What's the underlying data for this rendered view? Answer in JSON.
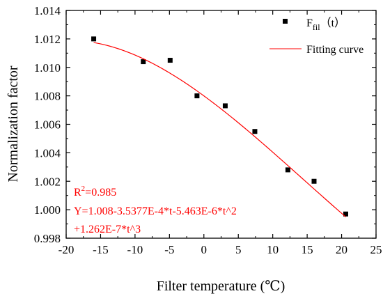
{
  "chart_data": {
    "type": "scatter",
    "xlabel": "Filter temperature (℃)",
    "ylabel": "Normalization factor",
    "xlim": [
      -20,
      25
    ],
    "ylim": [
      0.998,
      1.014
    ],
    "x_ticks": [
      -20,
      -15,
      -10,
      -5,
      0,
      5,
      10,
      15,
      20,
      25
    ],
    "x_tick_labels": [
      "-20",
      "-15",
      "-10",
      "-5",
      "0",
      "5",
      "10",
      "15",
      "20",
      "25"
    ],
    "y_ticks": [
      0.998,
      1.0,
      1.002,
      1.004,
      1.006,
      1.008,
      1.01,
      1.012,
      1.014
    ],
    "y_tick_labels": [
      "0.998",
      "1.000",
      "1.002",
      "1.004",
      "1.006",
      "1.008",
      "1.010",
      "1.012",
      "1.014"
    ],
    "grid": false,
    "legend_position": "top-right",
    "series": [
      {
        "name": "F_fil(t)",
        "name_main": "F",
        "name_sub": "fil",
        "name_paren": "（t）",
        "kind": "markers",
        "marker": "square",
        "color": "#000000",
        "x": [
          -16.0,
          -8.8,
          -4.9,
          -1.0,
          3.1,
          7.4,
          12.2,
          16.0,
          20.6
        ],
        "y": [
          1.012,
          1.0104,
          1.0105,
          1.008,
          1.0073,
          1.0055,
          1.0028,
          1.002,
          0.9997
        ]
      },
      {
        "name": "Fitting curve",
        "kind": "line",
        "color": "#ff0000",
        "coefficients": [
          1.008,
          -0.00035377,
          -5.463e-06,
          1.262e-07
        ],
        "x_range": [
          -16.0,
          20.6
        ]
      }
    ],
    "annotations": {
      "r2_main": "R",
      "r2_sup": "2",
      "r2_value": "=0.985",
      "equation_line1": "Y=1.008-3.5377E-4*t-5.463E-6*t^2",
      "equation_line2": "+1.262E-7*t^3",
      "color": "#ff0000"
    }
  }
}
